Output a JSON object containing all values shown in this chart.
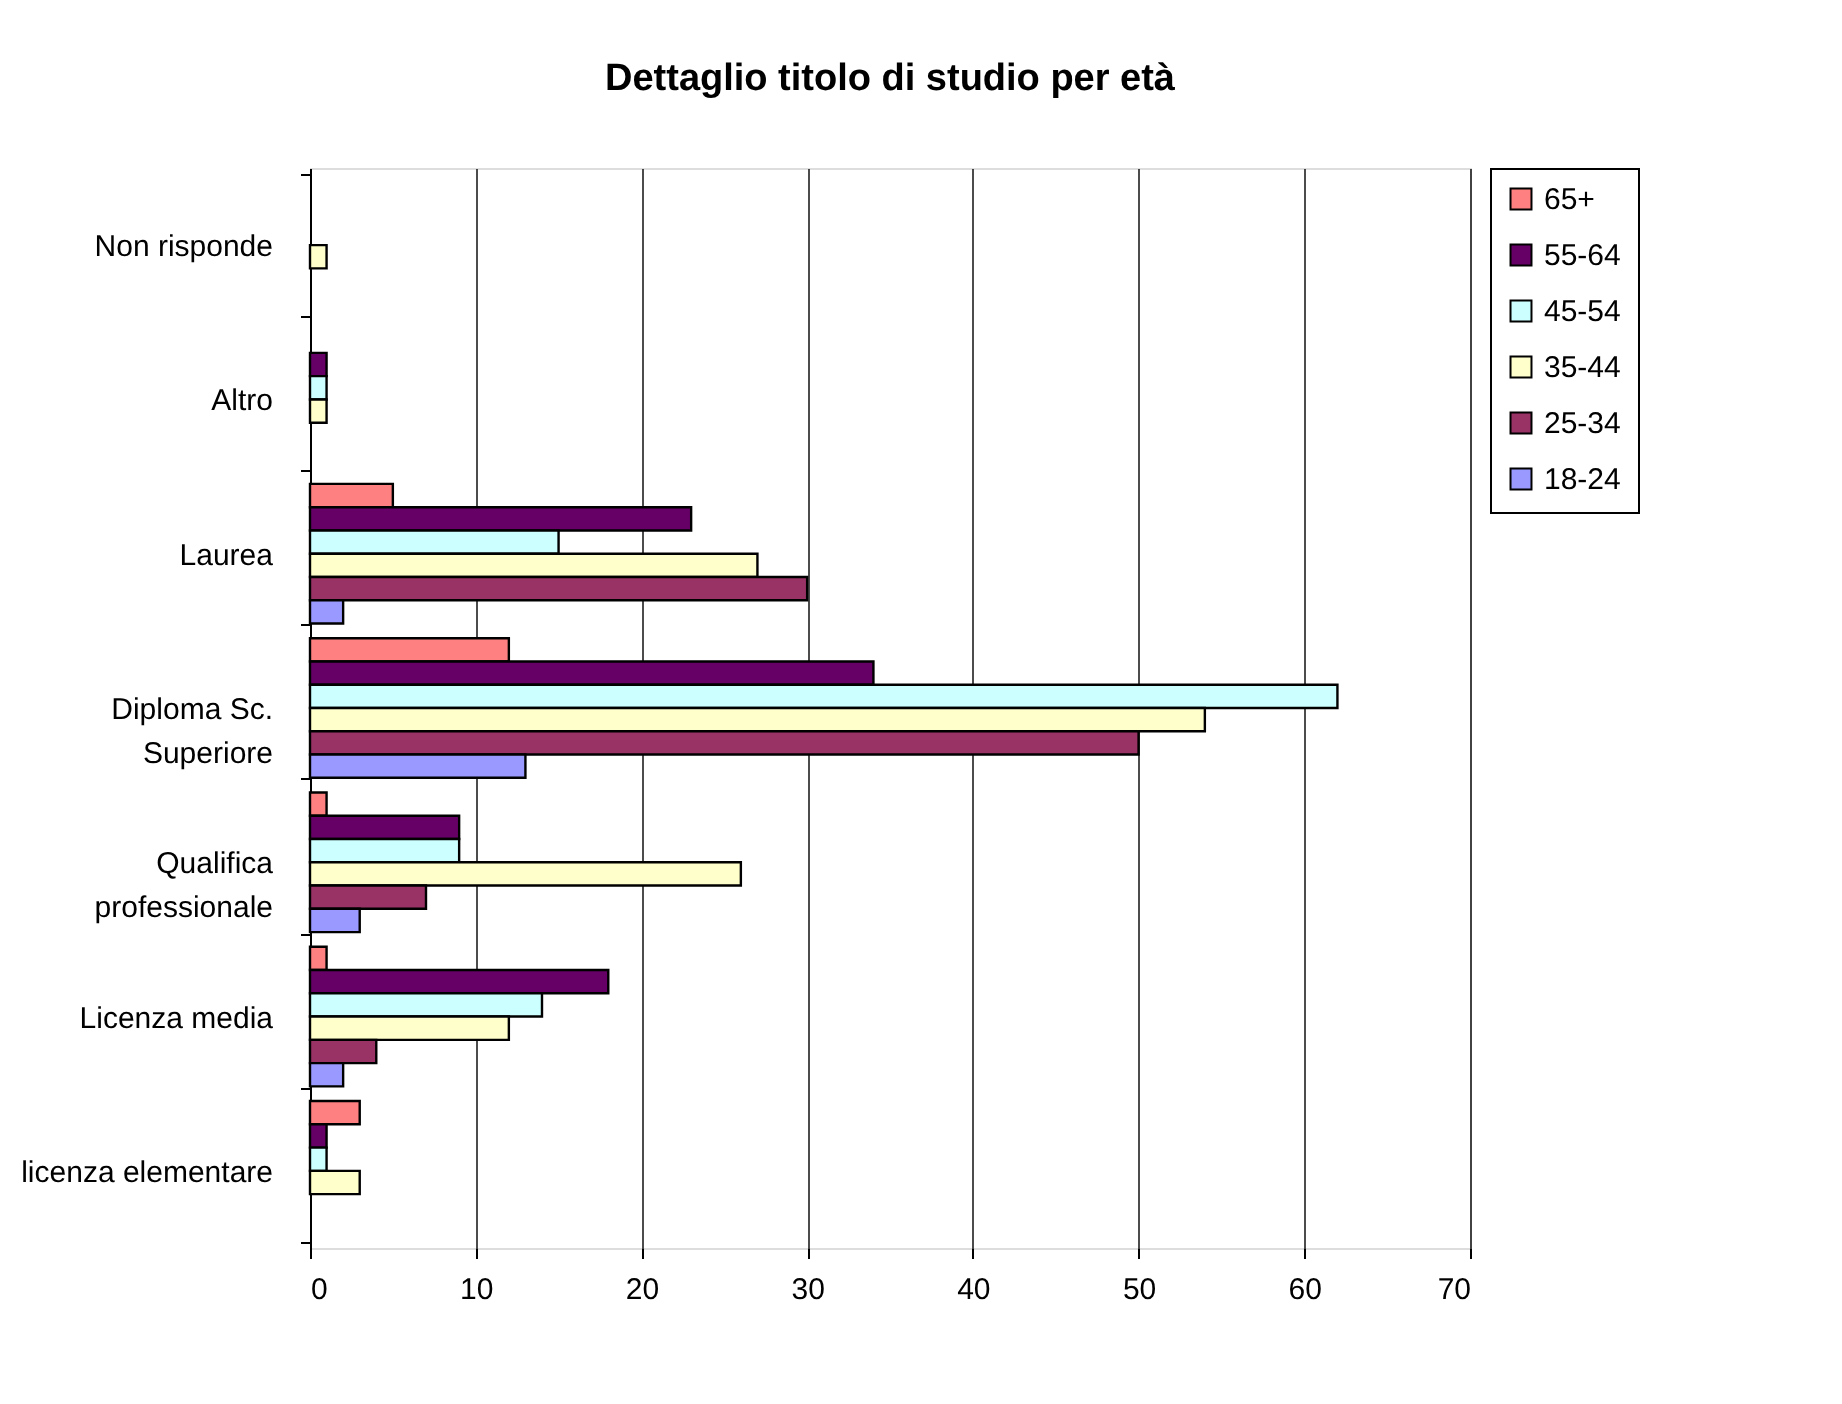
{
  "chart_data": {
    "type": "bar",
    "orientation": "horizontal",
    "title": "Dettaglio titolo di studio per età",
    "categories": [
      "Non risponde",
      "Altro",
      "Laurea",
      "Diploma Sc.\nSuperiore",
      "Qualifica\nprofessionale",
      "Licenza media",
      "licenza elementare"
    ],
    "series": [
      {
        "name": "65+",
        "color": "#ff8080",
        "values": [
          null,
          null,
          5,
          12,
          1,
          1,
          3
        ]
      },
      {
        "name": "55-64",
        "color": "#660066",
        "values": [
          null,
          1,
          23,
          34,
          9,
          18,
          1
        ]
      },
      {
        "name": "45-54",
        "color": "#ccffff",
        "values": [
          null,
          1,
          15,
          62,
          9,
          14,
          1
        ]
      },
      {
        "name": "35-44",
        "color": "#ffffcc",
        "values": [
          1,
          1,
          27,
          54,
          26,
          12,
          3
        ]
      },
      {
        "name": "25-34",
        "color": "#993366",
        "values": [
          null,
          null,
          30,
          50,
          7,
          4,
          null
        ]
      },
      {
        "name": "18-24",
        "color": "#9999ff",
        "values": [
          null,
          null,
          2,
          13,
          3,
          2,
          null
        ]
      }
    ],
    "xlim": [
      0,
      70
    ],
    "xticks": [
      0,
      10,
      20,
      30,
      40,
      50,
      60,
      70
    ],
    "grid": "x",
    "legend": "right"
  }
}
